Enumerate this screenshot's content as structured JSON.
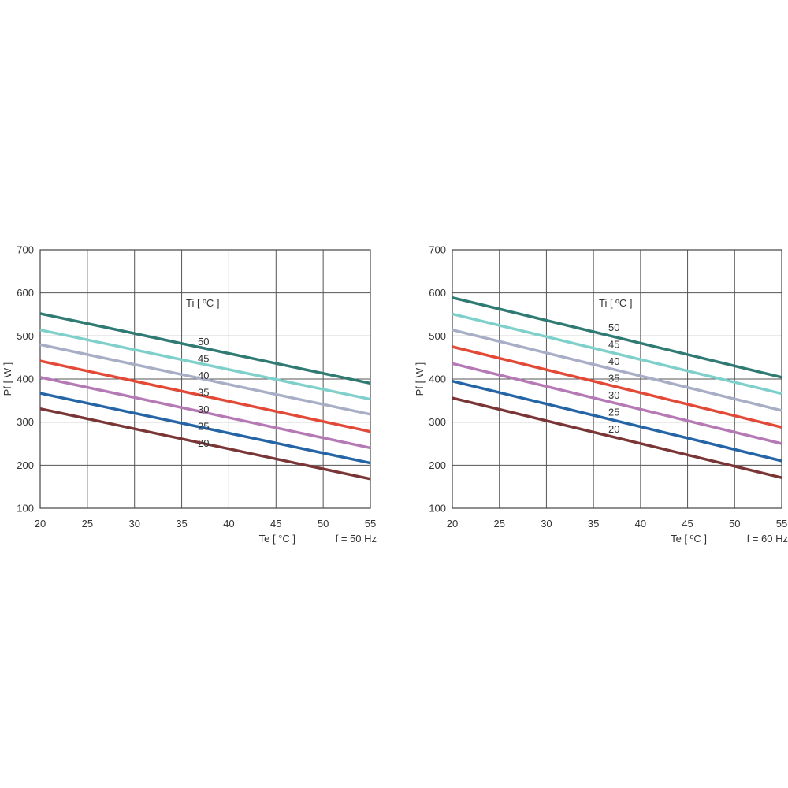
{
  "chart_data": [
    {
      "type": "line",
      "xlabel": "Te  [ °C ]",
      "ylabel": "Pf  [ W ]",
      "frequency_label": "f = 50 Hz",
      "legend_title": "Ti  [ ºC ]",
      "xlim": [
        20,
        55
      ],
      "ylim": [
        100,
        700
      ],
      "xticks": [
        "20",
        "25",
        "30",
        "35",
        "40",
        "45",
        "50",
        "55"
      ],
      "yticks": [
        "100",
        "200",
        "300",
        "400",
        "500",
        "600",
        "700"
      ],
      "grid": true,
      "series": [
        {
          "name": "50",
          "color": "#2f7a72",
          "x": [
            20,
            55
          ],
          "y": [
            552,
            390
          ]
        },
        {
          "name": "45",
          "color": "#7fcfcb",
          "x": [
            20,
            55
          ],
          "y": [
            514,
            353
          ]
        },
        {
          "name": "40",
          "color": "#a8aec6",
          "x": [
            20,
            55
          ],
          "y": [
            480,
            318
          ]
        },
        {
          "name": "35",
          "color": "#e24a37",
          "x": [
            20,
            55
          ],
          "y": [
            442,
            278
          ]
        },
        {
          "name": "30",
          "color": "#b57ab5",
          "x": [
            20,
            55
          ],
          "y": [
            404,
            240
          ]
        },
        {
          "name": "25",
          "color": "#2565a6",
          "x": [
            20,
            55
          ],
          "y": [
            367,
            205
          ]
        },
        {
          "name": "20",
          "color": "#7a3636",
          "x": [
            20,
            55
          ],
          "y": [
            331,
            168
          ]
        }
      ]
    },
    {
      "type": "line",
      "xlabel": "Te  [ ºC ]",
      "ylabel": "Pf  [ W ]",
      "frequency_label": "f = 60 Hz",
      "legend_title": "Ti  [ ºC ]",
      "xlim": [
        20,
        55
      ],
      "ylim": [
        100,
        700
      ],
      "xticks": [
        "20",
        "25",
        "30",
        "35",
        "40",
        "45",
        "50",
        "55"
      ],
      "yticks": [
        "100",
        "200",
        "300",
        "400",
        "500",
        "600",
        "700"
      ],
      "grid": true,
      "series": [
        {
          "name": "50",
          "color": "#2f7a72",
          "x": [
            20,
            55
          ],
          "y": [
            589,
            404
          ]
        },
        {
          "name": "45",
          "color": "#7fcfcb",
          "x": [
            20,
            55
          ],
          "y": [
            551,
            366
          ]
        },
        {
          "name": "40",
          "color": "#a8aec6",
          "x": [
            20,
            55
          ],
          "y": [
            514,
            327
          ]
        },
        {
          "name": "35",
          "color": "#e24a37",
          "x": [
            20,
            55
          ],
          "y": [
            475,
            288
          ]
        },
        {
          "name": "30",
          "color": "#b57ab5",
          "x": [
            20,
            55
          ],
          "y": [
            436,
            250
          ]
        },
        {
          "name": "25",
          "color": "#2565a6",
          "x": [
            20,
            55
          ],
          "y": [
            395,
            210
          ]
        },
        {
          "name": "20",
          "color": "#7a3636",
          "x": [
            20,
            55
          ],
          "y": [
            356,
            171
          ]
        }
      ]
    }
  ]
}
